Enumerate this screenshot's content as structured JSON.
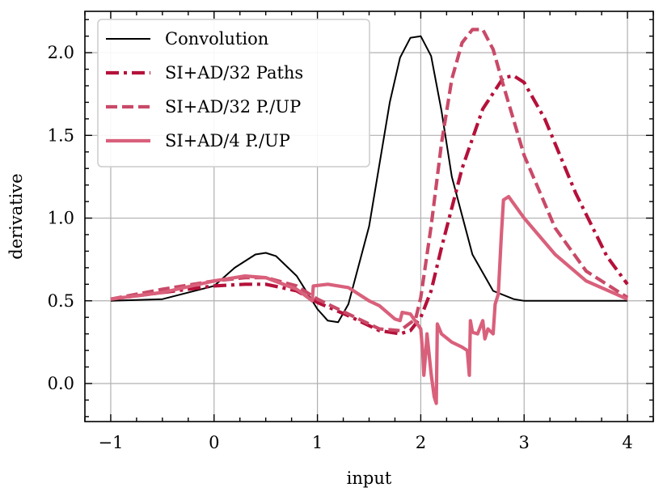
{
  "chart_data": {
    "type": "line",
    "title": "",
    "xlabel": "input",
    "ylabel": "derivative",
    "xlim": [
      -1.25,
      4.25
    ],
    "ylim": [
      -0.23,
      2.25
    ],
    "xticks": [
      -1,
      0,
      1,
      2,
      3,
      4
    ],
    "xtick_labels": [
      "−1",
      "0",
      "1",
      "2",
      "3",
      "4"
    ],
    "yticks": [
      0.0,
      0.5,
      1.0,
      1.5,
      2.0
    ],
    "ytick_labels": [
      "0.0",
      "0.5",
      "1.0",
      "1.5",
      "2.0"
    ],
    "grid": true,
    "legend_position": "top-left",
    "series": [
      {
        "name": "Convolution",
        "color": "#000000",
        "style": "solid",
        "x": [
          -1.0,
          -0.5,
          0.0,
          0.2,
          0.4,
          0.5,
          0.6,
          0.8,
          1.0,
          1.1,
          1.2,
          1.3,
          1.5,
          1.7,
          1.8,
          1.9,
          2.0,
          2.1,
          2.2,
          2.3,
          2.5,
          2.7,
          2.9,
          3.0,
          3.5,
          4.0
        ],
        "y": [
          0.5,
          0.51,
          0.59,
          0.7,
          0.78,
          0.79,
          0.77,
          0.65,
          0.45,
          0.38,
          0.37,
          0.48,
          0.95,
          1.7,
          1.97,
          2.09,
          2.1,
          1.98,
          1.65,
          1.25,
          0.78,
          0.56,
          0.51,
          0.5,
          0.5,
          0.5
        ]
      },
      {
        "name": "SI+AD/32 Paths",
        "color": "#b5113a",
        "style": "dashdot",
        "x": [
          -1.0,
          -0.5,
          0.0,
          0.3,
          0.5,
          0.8,
          1.0,
          1.3,
          1.6,
          1.8,
          1.9,
          2.0,
          2.1,
          2.2,
          2.4,
          2.6,
          2.8,
          2.9,
          3.0,
          3.2,
          3.5,
          3.8,
          4.0
        ],
        "y": [
          0.51,
          0.55,
          0.59,
          0.6,
          0.6,
          0.56,
          0.49,
          0.41,
          0.32,
          0.3,
          0.32,
          0.4,
          0.56,
          0.82,
          1.3,
          1.66,
          1.85,
          1.86,
          1.82,
          1.6,
          1.15,
          0.77,
          0.6
        ]
      },
      {
        "name": "SI+AD/32 P./UP",
        "color": "#c94a68",
        "style": "dashed",
        "x": [
          -1.0,
          -0.5,
          0.0,
          0.3,
          0.5,
          0.8,
          1.0,
          1.3,
          1.6,
          1.8,
          1.95,
          2.0,
          2.1,
          2.2,
          2.3,
          2.4,
          2.5,
          2.6,
          2.7,
          2.8,
          3.0,
          3.3,
          3.6,
          4.0
        ],
        "y": [
          0.51,
          0.57,
          0.62,
          0.64,
          0.64,
          0.59,
          0.51,
          0.42,
          0.33,
          0.32,
          0.39,
          0.52,
          0.95,
          1.45,
          1.84,
          2.06,
          2.14,
          2.14,
          2.02,
          1.8,
          1.38,
          0.94,
          0.68,
          0.52
        ]
      },
      {
        "name": "SI+AD/4 P./UP",
        "color": "#d9607b",
        "style": "solid",
        "x": [
          -1.0,
          -0.5,
          0.0,
          0.3,
          0.5,
          0.8,
          0.95,
          0.96,
          1.1,
          1.3,
          1.5,
          1.6,
          1.75,
          1.8,
          1.82,
          1.9,
          2.0,
          2.02,
          2.03,
          2.05,
          2.06,
          2.1,
          2.13,
          2.15,
          2.16,
          2.2,
          2.3,
          2.4,
          2.45,
          2.47,
          2.48,
          2.5,
          2.55,
          2.6,
          2.62,
          2.65,
          2.7,
          2.72,
          2.75,
          2.78,
          2.8,
          2.85,
          3.0,
          3.3,
          3.6,
          4.0
        ],
        "y": [
          0.51,
          0.55,
          0.62,
          0.65,
          0.64,
          0.57,
          0.5,
          0.59,
          0.6,
          0.58,
          0.5,
          0.47,
          0.39,
          0.38,
          0.43,
          0.42,
          0.33,
          0.18,
          0.05,
          0.2,
          0.3,
          0.06,
          -0.08,
          -0.12,
          0.36,
          0.3,
          0.25,
          0.22,
          0.2,
          0.05,
          0.38,
          0.31,
          0.3,
          0.38,
          0.27,
          0.33,
          0.3,
          0.48,
          0.54,
          0.9,
          1.11,
          1.13,
          1.0,
          0.78,
          0.62,
          0.51
        ]
      }
    ]
  }
}
